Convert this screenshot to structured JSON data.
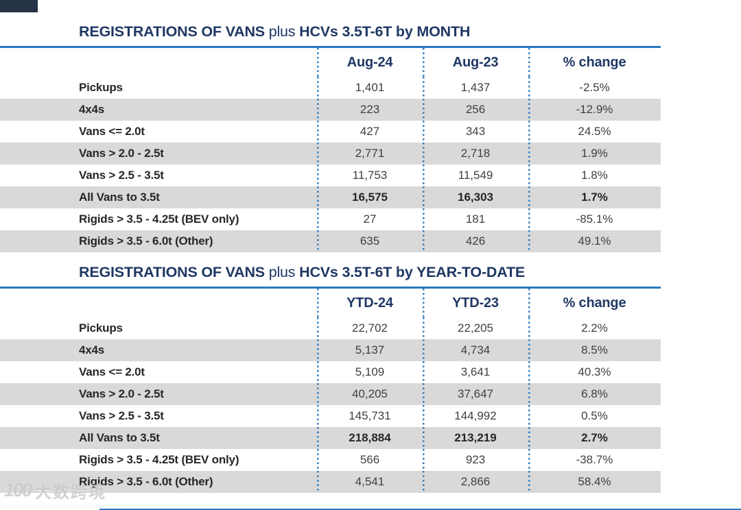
{
  "colors": {
    "title_navy": "#1f3864",
    "rule_blue": "#2878be",
    "dotted_blue": "#2e7cc0",
    "stripe_gray": "#d9d9d9",
    "data_text": "#3f3f3f",
    "corner_tag": "#263246"
  },
  "watermark": {
    "logo": "100",
    "text": "大数跨境"
  },
  "tables": [
    {
      "title_bold1": "REGISTRATIONS OF VANS",
      "title_regular": " plus ",
      "title_bold2": "HCVs 3.5T-6T by MONTH",
      "columns": [
        "Aug-24",
        "Aug-23",
        "% change"
      ],
      "rows": [
        {
          "label": "Pickups",
          "values": [
            "1,401",
            "1,437",
            "-2.5%"
          ],
          "bold": false
        },
        {
          "label": "4x4s",
          "values": [
            "223",
            "256",
            "-12.9%"
          ],
          "bold": false
        },
        {
          "label": "Vans <= 2.0t",
          "values": [
            "427",
            "343",
            "24.5%"
          ],
          "bold": false
        },
        {
          "label": "Vans > 2.0 - 2.5t",
          "values": [
            "2,771",
            "2,718",
            "1.9%"
          ],
          "bold": false
        },
        {
          "label": "Vans > 2.5 - 3.5t",
          "values": [
            "11,753",
            "11,549",
            "1.8%"
          ],
          "bold": false
        },
        {
          "label": "All Vans to 3.5t",
          "values": [
            "16,575",
            "16,303",
            "1.7%"
          ],
          "bold": true
        },
        {
          "label": "Rigids > 3.5 - 4.25t (BEV only)",
          "values": [
            "27",
            "181",
            "-85.1%"
          ],
          "bold": false
        },
        {
          "label": "Rigids > 3.5 - 6.0t (Other)",
          "values": [
            "635",
            "426",
            "49.1%"
          ],
          "bold": false
        }
      ]
    },
    {
      "title_bold1": "REGISTRATIONS OF VANS",
      "title_regular": " plus ",
      "title_bold2": "HCVs 3.5T-6T by YEAR-TO-DATE",
      "columns": [
        "YTD-24",
        "YTD-23",
        "% change"
      ],
      "rows": [
        {
          "label": "Pickups",
          "values": [
            "22,702",
            "22,205",
            "2.2%"
          ],
          "bold": false
        },
        {
          "label": "4x4s",
          "values": [
            "5,137",
            "4,734",
            "8.5%"
          ],
          "bold": false
        },
        {
          "label": "Vans <= 2.0t",
          "values": [
            "5,109",
            "3,641",
            "40.3%"
          ],
          "bold": false
        },
        {
          "label": "Vans > 2.0 - 2.5t",
          "values": [
            "40,205",
            "37,647",
            "6.8%"
          ],
          "bold": false
        },
        {
          "label": "Vans > 2.5 - 3.5t",
          "values": [
            "145,731",
            "144,992",
            "0.5%"
          ],
          "bold": false
        },
        {
          "label": "All Vans to 3.5t",
          "values": [
            "218,884",
            "213,219",
            "2.7%"
          ],
          "bold": true
        },
        {
          "label": "Rigids > 3.5 - 4.25t (BEV only)",
          "values": [
            "566",
            "923",
            "-38.7%"
          ],
          "bold": false
        },
        {
          "label": "Rigids > 3.5 - 6.0t (Other)",
          "values": [
            "4,541",
            "2,866",
            "58.4%"
          ],
          "bold": false
        }
      ]
    }
  ]
}
